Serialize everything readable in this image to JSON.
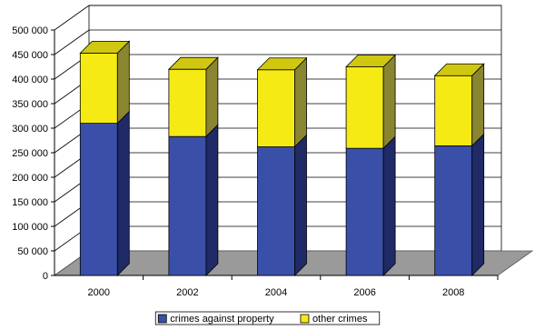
{
  "chart_data": {
    "type": "bar",
    "stacked": true,
    "style": "3d",
    "categories": [
      "2000",
      "2002",
      "2004",
      "2006",
      "2008"
    ],
    "series": [
      {
        "name": "crimes against property",
        "values": [
          310000,
          283000,
          262000,
          259000,
          264000
        ],
        "color": "#3a50a8"
      },
      {
        "name": "other crimes",
        "values": [
          143000,
          137000,
          157000,
          166000,
          143000
        ],
        "color": "#f5ea14"
      }
    ],
    "ylim": [
      0,
      500000
    ],
    "yticks": [
      0,
      50000,
      100000,
      150000,
      200000,
      250000,
      300000,
      350000,
      400000,
      450000,
      500000
    ],
    "ytick_labels": [
      "0",
      "50 000",
      "100 000",
      "150 000",
      "200 000",
      "250 000",
      "300 000",
      "350 000",
      "400 000",
      "450 000",
      "500 000"
    ],
    "grid": true,
    "legend_position": "bottom",
    "title": "",
    "xlabel": "",
    "ylabel": ""
  }
}
